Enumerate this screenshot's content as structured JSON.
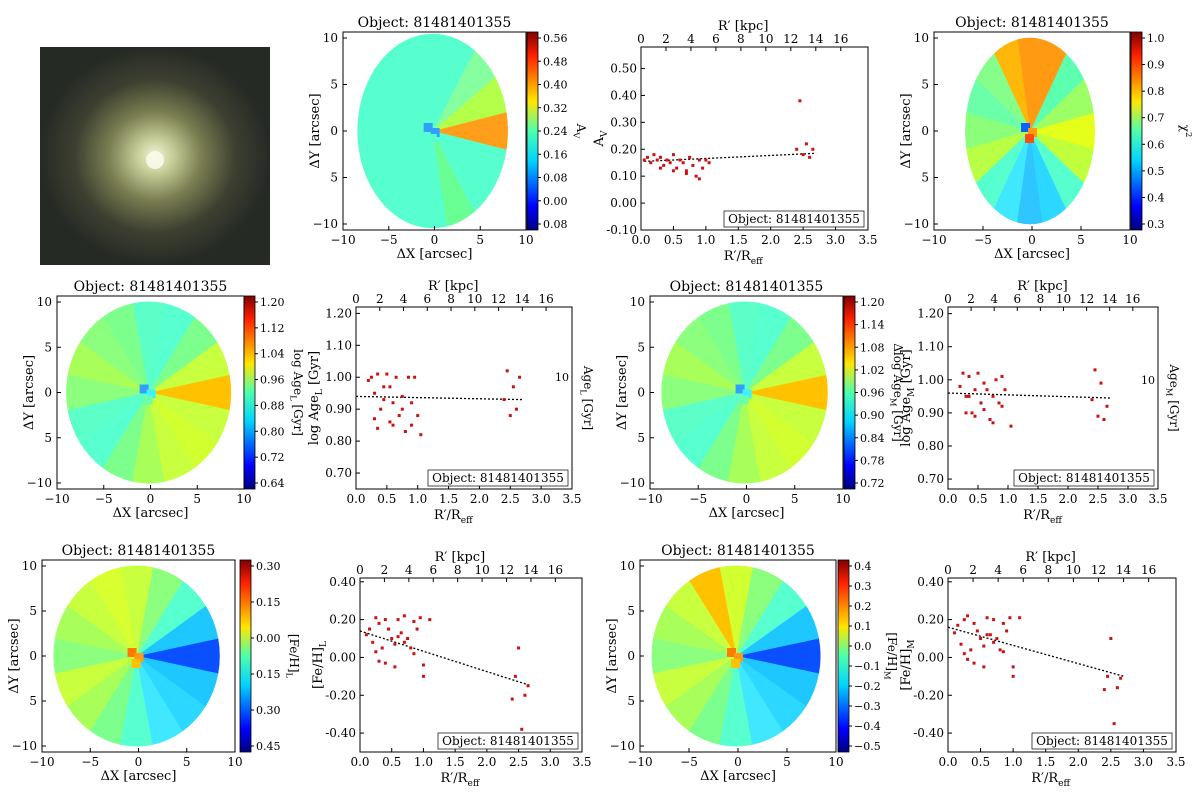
{
  "object_label": "Object: 81481401355",
  "map_axes": {
    "xlabel": "ΔX [arcsec]",
    "ylabel": "ΔY [arcsec]",
    "x_ticks": [
      "−10",
      "−5",
      "0",
      "5",
      "10"
    ],
    "y_ticks": [
      "10",
      "5",
      "0",
      "5",
      "−10"
    ]
  },
  "profile_axes": {
    "xlabel": "R′/R",
    "xlabel_sub": "eff",
    "top_xlabel": "R′ [kpc]",
    "x_ticks": [
      "0.0",
      "0.5",
      "1.0",
      "1.5",
      "2.0",
      "2.5",
      "3.0",
      "3.5"
    ],
    "top_ticks": [
      "0",
      "2",
      "4",
      "6",
      "8",
      "10",
      "12",
      "14",
      "16"
    ]
  },
  "colorbars": {
    "av": {
      "label": "A",
      "label_sub": "V",
      "ticks": [
        "0.56",
        "0.48",
        "0.40",
        "0.32",
        "0.24",
        "0.16",
        "0.08",
        "0.00",
        "0.08"
      ]
    },
    "chi2": {
      "label": "χ",
      "label_sup": "2",
      "ticks": [
        "1.0",
        "0.9",
        "0.8",
        "0.7",
        "0.6",
        "0.5",
        "0.4",
        "0.3"
      ]
    },
    "ageL": {
      "label": "log Age",
      "label_sub": "L",
      "label_unit": " [Gyr]",
      "ticks": [
        "1.20",
        "1.12",
        "1.04",
        "0.96",
        "0.88",
        "0.80",
        "0.72",
        "0.64"
      ]
    },
    "dageM": {
      "label": "Δlog Age",
      "label_sub": "M",
      "label_unit": " [Gyr]",
      "ticks": [
        "1.20",
        "1.14",
        "1.08",
        "1.02",
        "0.96",
        "0.90",
        "0.84",
        "0.78",
        "0.72"
      ]
    },
    "fehL": {
      "label": "[Fe/H]",
      "label_sub": "L",
      "ticks": [
        "0.30",
        "0.15",
        "0.00",
        "0.15",
        "0.30",
        "0.45"
      ]
    },
    "fehM": {
      "label": "[Fe/H]",
      "label_sub": "M",
      "ticks": [
        "0.4",
        "0.3",
        "0.2",
        "0.1",
        "0.0",
        "−0.1",
        "−0.2",
        "−0.3",
        "−0.4",
        "−0.5"
      ]
    }
  },
  "colors": {
    "points": "#cc1111",
    "fit": "#000000"
  },
  "chart_data": [
    {
      "type": "scatter",
      "id": "av-profile",
      "ylabel": "A",
      "ylabel_sub": "V",
      "y_ticks": [
        "0.50",
        "0.40",
        "0.30",
        "0.20",
        "0.10",
        "0.00",
        "-0.10"
      ],
      "ylim": [
        -0.1,
        0.58
      ],
      "xlim": [
        0,
        3.5
      ],
      "x": [
        0.05,
        0.1,
        0.15,
        0.2,
        0.25,
        0.3,
        0.35,
        0.4,
        0.45,
        0.5,
        0.55,
        0.6,
        0.65,
        0.7,
        0.75,
        0.8,
        0.85,
        0.9,
        0.95,
        1.0,
        1.05,
        2.4,
        2.45,
        2.5,
        2.55,
        2.6,
        2.65,
        0.3,
        0.5,
        0.7,
        0.9
      ],
      "y": [
        0.16,
        0.17,
        0.15,
        0.18,
        0.16,
        0.17,
        0.14,
        0.16,
        0.15,
        0.18,
        0.13,
        0.16,
        0.15,
        0.12,
        0.17,
        0.14,
        0.1,
        0.16,
        0.13,
        0.16,
        0.15,
        0.2,
        0.38,
        0.18,
        0.22,
        0.17,
        0.2,
        0.13,
        0.12,
        0.11,
        0.09
      ],
      "fit": [
        [
          0.05,
          0.155
        ],
        [
          2.7,
          0.185
        ]
      ],
      "legend": "Object: 81481401355"
    },
    {
      "type": "scatter",
      "id": "ageL-profile",
      "ylabel": "log Age",
      "ylabel_sub": "L",
      "ylabel_unit": " [Gyr]",
      "right_label": "Age",
      "right_sub": "L",
      "right_unit": " [Gyr]",
      "right_tick": "10",
      "y_ticks": [
        "1.20",
        "1.10",
        "1.00",
        "0.90",
        "0.80",
        "0.70"
      ],
      "ylim": [
        0.65,
        1.22
      ],
      "xlim": [
        0,
        3.5
      ],
      "x": [
        0.2,
        0.25,
        0.3,
        0.35,
        0.4,
        0.45,
        0.5,
        0.55,
        0.6,
        0.65,
        0.7,
        0.75,
        0.8,
        0.85,
        0.9,
        0.95,
        1.0,
        0.3,
        0.45,
        0.6,
        0.75,
        0.9,
        1.05,
        2.4,
        2.45,
        2.5,
        2.55,
        2.6,
        2.65,
        0.35,
        0.55
      ],
      "y": [
        0.99,
        1.0,
        0.95,
        1.01,
        0.9,
        0.97,
        1.01,
        0.86,
        0.92,
        1.0,
        0.88,
        0.94,
        0.83,
        1.0,
        0.92,
        1.0,
        0.88,
        0.87,
        0.93,
        0.85,
        0.9,
        0.85,
        0.82,
        0.93,
        1.02,
        0.88,
        0.97,
        0.9,
        1.0,
        0.84,
        0.97
      ],
      "fit": [
        [
          0.0,
          0.94
        ],
        [
          2.7,
          0.93
        ]
      ],
      "legend": "Object: 81481401355"
    },
    {
      "type": "scatter",
      "id": "ageM-profile",
      "ylabel": "log Age",
      "ylabel_sub": "M",
      "ylabel_unit": " [Gyr]",
      "right_label": "Age",
      "right_sub": "M",
      "right_unit": " [Gyr]",
      "right_tick": "10",
      "y_ticks": [
        "1.20",
        "1.10",
        "1.00",
        "0.90",
        "0.80",
        "0.70"
      ],
      "ylim": [
        0.67,
        1.22
      ],
      "xlim": [
        0,
        3.5
      ],
      "x": [
        0.2,
        0.25,
        0.3,
        0.35,
        0.4,
        0.45,
        0.5,
        0.55,
        0.6,
        0.65,
        0.7,
        0.75,
        0.8,
        0.85,
        0.9,
        0.95,
        0.3,
        0.45,
        0.6,
        0.75,
        0.9,
        1.05,
        2.4,
        2.45,
        2.5,
        2.55,
        2.6,
        2.65,
        0.35,
        0.55
      ],
      "y": [
        0.98,
        1.02,
        0.95,
        1.01,
        0.9,
        0.97,
        1.02,
        0.93,
        0.99,
        0.97,
        0.88,
        0.95,
        1.0,
        0.93,
        1.01,
        0.97,
        0.9,
        0.89,
        0.91,
        0.87,
        0.92,
        0.86,
        0.94,
        1.03,
        0.89,
        0.99,
        0.88,
        0.92,
        0.95,
        0.93
      ],
      "fit": [
        [
          0.0,
          0.96
        ],
        [
          2.7,
          0.945
        ]
      ],
      "legend": "Object: 81481401355"
    },
    {
      "type": "scatter",
      "id": "fehL-profile",
      "ylabel": "[Fe/H]",
      "ylabel_sub": "L",
      "y_ticks": [
        "0.40",
        "0.20",
        "0.00",
        "-0.20",
        "-0.40"
      ],
      "ylim": [
        -0.5,
        0.42
      ],
      "xlim": [
        0,
        3.5
      ],
      "x": [
        0.1,
        0.15,
        0.2,
        0.25,
        0.3,
        0.35,
        0.4,
        0.45,
        0.5,
        0.55,
        0.6,
        0.65,
        0.7,
        0.75,
        0.8,
        0.85,
        0.9,
        0.95,
        1.0,
        1.1,
        0.25,
        0.4,
        0.55,
        0.7,
        0.85,
        1.0,
        2.4,
        2.45,
        2.5,
        2.55,
        2.6,
        2.65,
        0.3,
        0.6
      ],
      "y": [
        0.12,
        0.15,
        0.08,
        0.21,
        0.18,
        0.05,
        0.2,
        0.15,
        0.1,
        0.07,
        0.2,
        0.13,
        0.22,
        0.1,
        0.05,
        0.19,
        0.15,
        0.21,
        -0.1,
        0.2,
        0.03,
        -0.03,
        -0.05,
        0.08,
        0.02,
        -0.04,
        -0.22,
        -0.1,
        0.05,
        -0.38,
        -0.2,
        -0.15,
        -0.02,
        0.11
      ],
      "fit": [
        [
          0.0,
          0.14
        ],
        [
          2.7,
          -0.15
        ]
      ],
      "legend": "Object: 81481401355"
    },
    {
      "type": "scatter",
      "id": "fehM-profile",
      "ylabel": "[Fe/H]",
      "ylabel_sub": "M",
      "y_ticks": [
        "0.40",
        "0.20",
        "0.00",
        "-0.20",
        "-0.40"
      ],
      "ylim": [
        -0.5,
        0.42
      ],
      "xlim": [
        0,
        3.5
      ],
      "x": [
        0.1,
        0.15,
        0.2,
        0.25,
        0.3,
        0.35,
        0.4,
        0.45,
        0.5,
        0.55,
        0.6,
        0.65,
        0.7,
        0.75,
        0.8,
        0.85,
        0.9,
        0.95,
        1.0,
        1.1,
        0.25,
        0.4,
        0.55,
        0.7,
        0.85,
        1.0,
        2.4,
        2.45,
        2.5,
        2.55,
        2.6,
        2.65,
        0.3,
        0.6
      ],
      "y": [
        0.13,
        0.17,
        0.07,
        0.2,
        0.22,
        0.04,
        0.18,
        0.14,
        0.1,
        0.06,
        0.21,
        0.12,
        0.2,
        0.1,
        0.04,
        0.18,
        0.14,
        0.21,
        -0.1,
        0.21,
        0.02,
        -0.03,
        -0.05,
        0.08,
        0.03,
        -0.05,
        -0.17,
        -0.1,
        0.1,
        -0.35,
        -0.16,
        -0.11,
        -0.01,
        0.12
      ],
      "fit": [
        [
          0.0,
          0.16
        ],
        [
          2.7,
          -0.1
        ]
      ],
      "legend": "Object: 81481401355"
    }
  ]
}
